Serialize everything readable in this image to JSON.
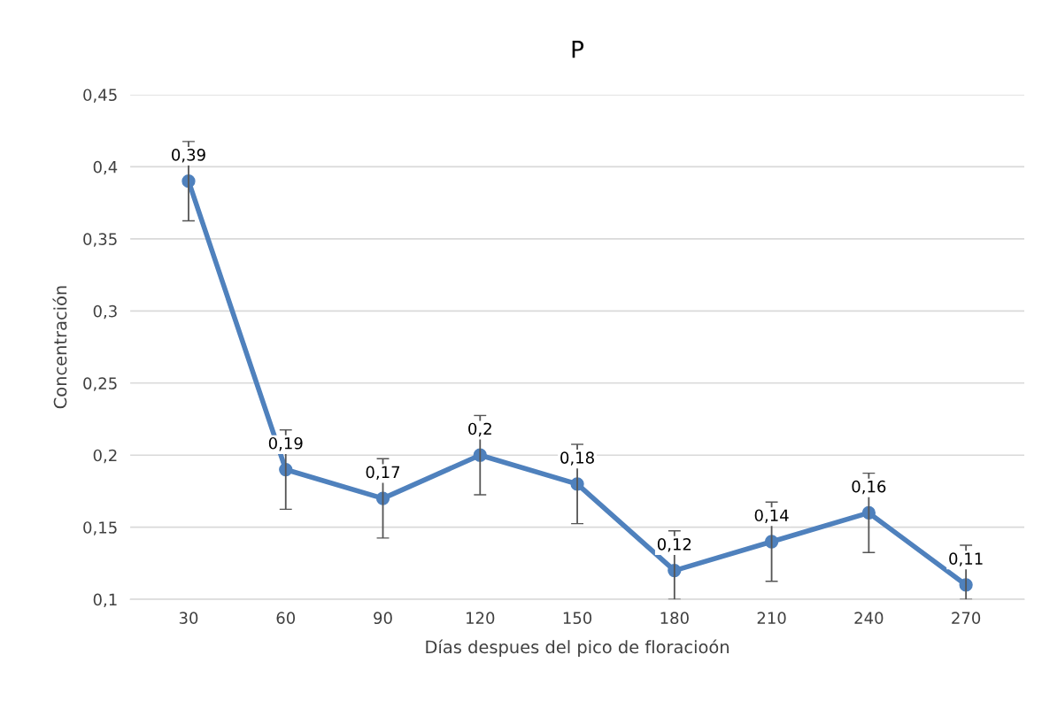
{
  "chart_data": {
    "type": "line",
    "title": "P",
    "xlabel": "Días despues del pico de floracioón",
    "ylabel": "Concentración",
    "categories": [
      "30",
      "60",
      "90",
      "120",
      "150",
      "180",
      "210",
      "240",
      "270"
    ],
    "series": [
      {
        "color": "#4f81bd",
        "values": [
          0.39,
          0.19,
          0.17,
          0.2,
          0.18,
          0.12,
          0.14,
          0.16,
          0.11
        ],
        "errors": [
          0.0275,
          0.0275,
          0.0275,
          0.0275,
          0.0275,
          [
            0.1,
            0.1475
          ],
          0.0275,
          0.0275,
          [
            0.1,
            0.1375
          ]
        ],
        "value_labels": [
          "0,39",
          "0,19",
          "0,17",
          "0,2",
          "0,18",
          "0,12",
          "0,14",
          "0,16",
          "0,11"
        ]
      }
    ],
    "ylim": [
      0.1,
      0.45
    ],
    "yticks": [
      {
        "value": 0.1,
        "label": "0,1"
      },
      {
        "value": 0.15,
        "label": "0,15"
      },
      {
        "value": 0.2,
        "label": "0,2"
      },
      {
        "value": 0.25,
        "label": "0,25"
      },
      {
        "value": 0.3,
        "label": "0,3"
      },
      {
        "value": 0.35,
        "label": "0,35"
      },
      {
        "value": 0.4,
        "label": "0,4"
      },
      {
        "value": 0.45,
        "label": "0,45"
      }
    ],
    "grid": "y",
    "marker": "circle",
    "line_style": "solid"
  }
}
